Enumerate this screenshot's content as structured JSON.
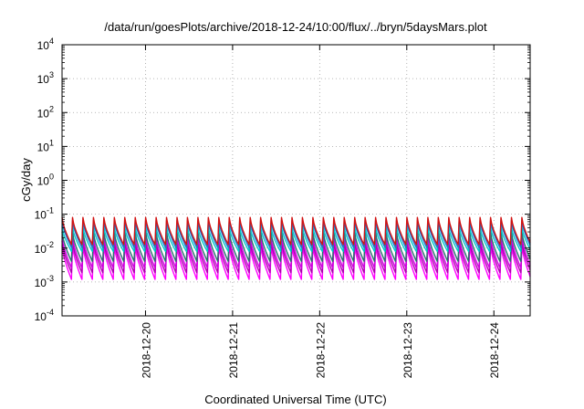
{
  "chart_data": {
    "type": "line",
    "title": "/data/run/goesPlots/archive/2018-12-24/10:00/flux/../bryn/5daysMars.plot",
    "xlabel": "Coordinated Universal Time (UTC)",
    "ylabel": "cGy/day",
    "y_scale": "log",
    "ylim": [
      0.0001,
      10000
    ],
    "y_ticks": [
      {
        "value": 0.0001,
        "mantissa": "10",
        "exp": "-4"
      },
      {
        "value": 0.001,
        "mantissa": "10",
        "exp": "-3"
      },
      {
        "value": 0.01,
        "mantissa": "10",
        "exp": "-2"
      },
      {
        "value": 0.1,
        "mantissa": "10",
        "exp": "-1"
      },
      {
        "value": 1,
        "mantissa": "10",
        "exp": "0"
      },
      {
        "value": 10,
        "mantissa": "10",
        "exp": "1"
      },
      {
        "value": 100,
        "mantissa": "10",
        "exp": "2"
      },
      {
        "value": 1000,
        "mantissa": "10",
        "exp": "3"
      },
      {
        "value": 10000,
        "mantissa": "10",
        "exp": "4"
      }
    ],
    "xlim": [
      "2018-12-19T01:00",
      "2018-12-24T10:00"
    ],
    "x_ticks": [
      "2018-12-20",
      "2018-12-21",
      "2018-12-22",
      "2018-12-23",
      "2018-12-24"
    ],
    "grid": true,
    "legend": "none",
    "oscillation_period_hours": 2.88,
    "series": [
      {
        "color": "#ff00ff",
        "min": 0.001,
        "max": 0.012
      },
      {
        "color": "#b000b0",
        "min": 0.0016,
        "max": 0.016
      },
      {
        "color": "#d000e0",
        "min": 0.0022,
        "max": 0.022
      },
      {
        "color": "#2a6e6e",
        "min": 0.0035,
        "max": 0.03
      },
      {
        "color": "#00c8c8",
        "min": 0.007,
        "max": 0.042
      },
      {
        "color": "#1f6fd0",
        "min": 0.009,
        "max": 0.065
      },
      {
        "color": "#d01010",
        "min": 0.011,
        "max": 0.08
      }
    ]
  }
}
